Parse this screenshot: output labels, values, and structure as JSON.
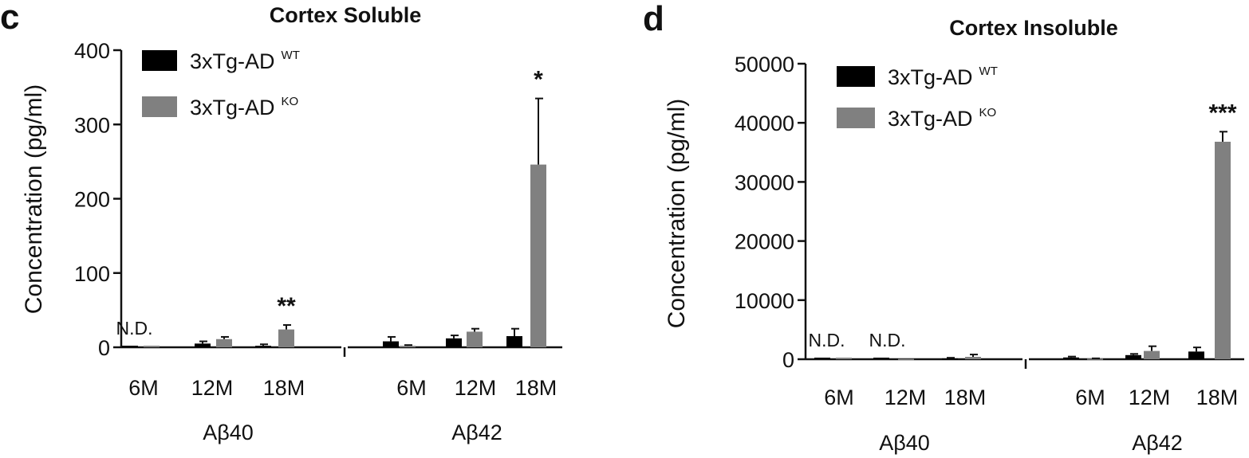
{
  "chart_data": [
    {
      "type": "bar",
      "panel_letter": "c",
      "title": "Cortex Soluble",
      "ylabel": "Concentration (pg/ml)",
      "ylim": [
        0,
        400
      ],
      "yticks": [
        "0",
        "100",
        "200",
        "300",
        "400"
      ],
      "groups": [
        "Aβ40",
        "Aβ42"
      ],
      "categories": [
        "6M",
        "12M",
        "18M"
      ],
      "series": [
        {
          "name": "3xTg-AD WT",
          "legend_base": "3xTg-AD",
          "legend_sup": "WT",
          "color": "#000000",
          "values": [
            [
              0,
              5,
              2
            ],
            [
              8,
              12,
              15
            ]
          ],
          "errors": [
            [
              0,
              3,
              2
            ],
            [
              6,
              4,
              10
            ]
          ]
        },
        {
          "name": "3xTg-AD KO",
          "legend_base": "3xTg-AD",
          "legend_sup": "KO",
          "color": "#808080",
          "values": [
            [
              0,
              11,
              24
            ],
            [
              2,
              21,
              246
            ]
          ],
          "errors": [
            [
              0,
              3,
              6
            ],
            [
              1,
              4,
              89
            ]
          ]
        }
      ],
      "not_detected": [
        {
          "group": 0,
          "category": 0,
          "label": "N.D."
        }
      ],
      "significance": [
        {
          "group": 0,
          "category": 2,
          "label": "**"
        },
        {
          "group": 1,
          "category": 2,
          "label": "*"
        }
      ]
    },
    {
      "type": "bar",
      "panel_letter": "d",
      "title": "Cortex Insoluble",
      "ylabel": "Concentration (pg/ml)",
      "ylim": [
        0,
        50000
      ],
      "yticks": [
        "0",
        "10000",
        "20000",
        "30000",
        "40000",
        "50000"
      ],
      "groups": [
        "Aβ40",
        "Aβ42"
      ],
      "categories": [
        "6M",
        "12M",
        "18M"
      ],
      "series": [
        {
          "name": "3xTg-AD WT",
          "legend_base": "3xTg-AD",
          "legend_sup": "WT",
          "color": "#000000",
          "values": [
            [
              0,
              0,
              150
            ],
            [
              300,
              700,
              1300
            ]
          ],
          "errors": [
            [
              0,
              0,
              100
            ],
            [
              150,
              200,
              700
            ]
          ]
        },
        {
          "name": "3xTg-AD KO",
          "legend_base": "3xTg-AD",
          "legend_sup": "KO",
          "color": "#808080",
          "values": [
            [
              0,
              50,
              400
            ],
            [
              100,
              1400,
              36800
            ]
          ],
          "errors": [
            [
              0,
              0,
              400
            ],
            [
              50,
              800,
              1700
            ]
          ]
        }
      ],
      "not_detected": [
        {
          "group": 0,
          "category": 0,
          "label": "N.D."
        },
        {
          "group": 0,
          "category": 1,
          "label": "N.D."
        }
      ],
      "significance": [
        {
          "group": 1,
          "category": 2,
          "label": "***"
        }
      ]
    }
  ]
}
